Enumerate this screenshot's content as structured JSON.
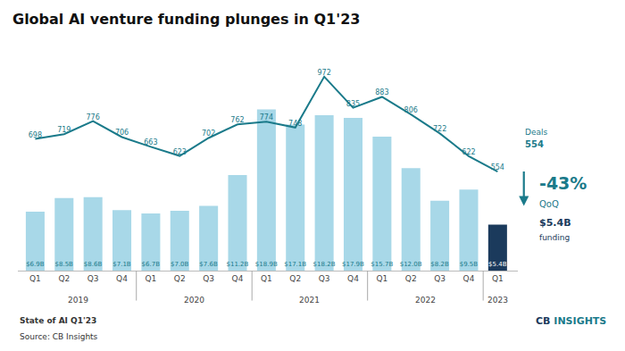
{
  "chart_data": {
    "type": "bar",
    "title": "Global AI venture funding plunges in Q1'23",
    "categories": [
      "Q1",
      "Q2",
      "Q3",
      "Q4",
      "Q1",
      "Q2",
      "Q3",
      "Q4",
      "Q1",
      "Q2",
      "Q3",
      "Q4",
      "Q1",
      "Q2",
      "Q3",
      "Q4",
      "Q1"
    ],
    "years": [
      "2019",
      "2019",
      "2019",
      "2019",
      "2020",
      "2020",
      "2020",
      "2020",
      "2021",
      "2021",
      "2021",
      "2021",
      "2022",
      "2022",
      "2022",
      "2022",
      "2023"
    ],
    "series": [
      {
        "type": "bar",
        "values": [
          6.9,
          8.5,
          8.6,
          7.1,
          6.7,
          7.0,
          7.6,
          11.2,
          18.9,
          17.1,
          18.2,
          17.9,
          15.7,
          12.0,
          8.2,
          9.5,
          5.4
        ],
        "value_labels": [
          "$6.9B",
          "$8.5B",
          "$8.6B",
          "$7.1B",
          "$6.7B",
          "$7.0B",
          "$7.6B",
          "$11.2B",
          "$18.9B",
          "$17.1B",
          "$18.2B",
          "$17.9B",
          "$15.7B",
          "$12.0B",
          "$8.2B",
          "$9.5B",
          "$5.4B"
        ],
        "colors": [
          "#a8d8e8",
          "#a8d8e8",
          "#a8d8e8",
          "#a8d8e8",
          "#a8d8e8",
          "#a8d8e8",
          "#a8d8e8",
          "#a8d8e8",
          "#a8d8e8",
          "#a8d8e8",
          "#a8d8e8",
          "#a8d8e8",
          "#a8d8e8",
          "#a8d8e8",
          "#a8d8e8",
          "#a8d8e8",
          "#1b3a5c"
        ]
      },
      {
        "type": "line",
        "axis": "y2",
        "color": "#1a7a8a",
        "values": [
          698,
          719,
          776,
          706,
          663,
          623,
          702,
          762,
          774,
          748,
          972,
          835,
          883,
          806,
          722,
          622,
          554
        ]
      }
    ],
    "ylim": [
      0,
      27
    ],
    "y2lim": [
      117.6,
      1132.8
    ],
    "tick_labels": "x",
    "grid": false,
    "data_labels": true,
    "annotations": [
      "Deals",
      "554",
      "-43%",
      "QoQ",
      "$5.4B",
      "funding",
      "State of AI Q1'23",
      "Source: CB Insights",
      "CB",
      "INSIGHTS"
    ]
  }
}
